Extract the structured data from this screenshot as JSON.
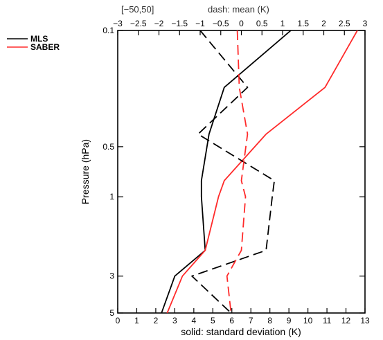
{
  "chart_data": {
    "type": "line",
    "top_left_label": "[−50,50]",
    "top_title": "dash: mean (K)",
    "xlabel": "solid: standard deviation (K)",
    "ylabel": "Pressure (hPa)",
    "x_bottom": {
      "range": [
        0,
        13
      ],
      "ticks": [
        0,
        1,
        2,
        3,
        4,
        5,
        6,
        7,
        8,
        9,
        10,
        11,
        12,
        13
      ],
      "tick_labels": [
        "0",
        "1",
        "2",
        "3",
        "4",
        "5",
        "6",
        "7",
        "8",
        "9",
        "10",
        "11",
        "12",
        "13"
      ]
    },
    "x_top": {
      "range": [
        -3,
        3
      ],
      "ticks": [
        -3,
        -2.5,
        -2,
        -1.5,
        -1,
        -0.5,
        0,
        0.5,
        1,
        1.5,
        2,
        2.5,
        3
      ],
      "tick_labels": [
        "−3",
        "−2.5",
        "−2",
        "−1.5",
        "−1",
        "−0.5",
        "0",
        "0.5",
        "1",
        "1.5",
        "2",
        "2.5",
        "3"
      ]
    },
    "y_axis": {
      "scale": "log",
      "inverted": true,
      "range": [
        0.1,
        5
      ],
      "ticks": [
        0.1,
        0.5,
        1,
        3,
        5
      ],
      "tick_labels": [
        "0.1",
        "0.5",
        "1",
        "3",
        "5"
      ]
    },
    "legend": {
      "position": "top-left-outside",
      "entries": [
        {
          "label": "MLS",
          "color": "#000000"
        },
        {
          "label": "SABER",
          "color": "#ff2a2a"
        }
      ]
    },
    "series": [
      {
        "name": "MLS",
        "style": "solid",
        "axis": "bottom",
        "color": "#000000",
        "points": [
          [
            9.1,
            0.1
          ],
          [
            5.6,
            0.22
          ],
          [
            4.8,
            0.42
          ],
          [
            4.4,
            0.8
          ],
          [
            4.4,
            1.0
          ],
          [
            4.6,
            2.1
          ],
          [
            3.0,
            3.0
          ],
          [
            2.3,
            5.0
          ]
        ]
      },
      {
        "name": "SABER",
        "style": "solid",
        "axis": "bottom",
        "color": "#ff2a2a",
        "points": [
          [
            12.6,
            0.1
          ],
          [
            10.9,
            0.22
          ],
          [
            7.8,
            0.42
          ],
          [
            5.6,
            0.8
          ],
          [
            5.3,
            1.0
          ],
          [
            4.6,
            2.1
          ],
          [
            3.4,
            3.0
          ],
          [
            2.6,
            5.0
          ]
        ]
      },
      {
        "name": "MLS",
        "style": "dashed",
        "axis": "top",
        "color": "#000000",
        "points": [
          [
            -1.0,
            0.1
          ],
          [
            0.15,
            0.22
          ],
          [
            -1.05,
            0.42
          ],
          [
            0.8,
            0.8
          ],
          [
            0.75,
            1.0
          ],
          [
            0.6,
            2.1
          ],
          [
            -1.2,
            3.0
          ],
          [
            -0.25,
            5.0
          ]
        ]
      },
      {
        "name": "SABER",
        "style": "dashed",
        "axis": "top",
        "color": "#ff2a2a",
        "points": [
          [
            -0.1,
            0.1
          ],
          [
            -0.05,
            0.22
          ],
          [
            0.15,
            0.42
          ],
          [
            0.0,
            0.8
          ],
          [
            0.1,
            1.0
          ],
          [
            0.0,
            2.1
          ],
          [
            -0.35,
            3.0
          ],
          [
            -0.25,
            5.0
          ]
        ]
      }
    ]
  }
}
